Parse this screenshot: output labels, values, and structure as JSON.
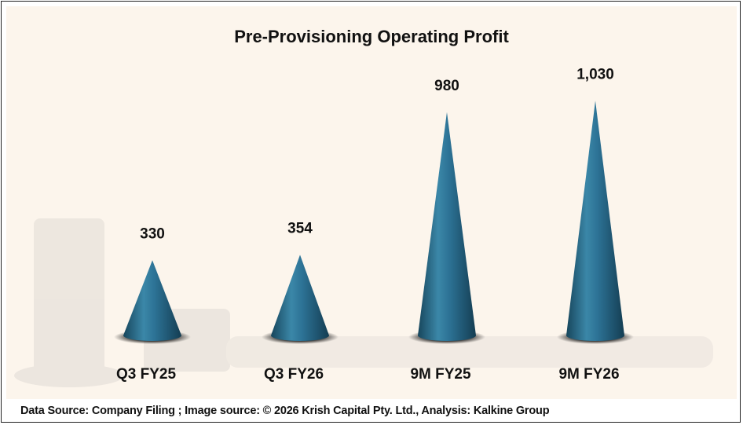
{
  "chart_data": {
    "type": "bar",
    "title": "Pre-Provisioning Operating Profit",
    "categories": [
      "Q3 FY25",
      "Q3 FY26",
      "9M FY25",
      "9M FY26"
    ],
    "values": [
      330,
      354,
      980,
      1030
    ],
    "value_labels": [
      "330",
      "354",
      "980",
      "1,030"
    ],
    "xlabel": "",
    "ylabel": "",
    "grid": false,
    "bar_shape": "cone",
    "bar_color": "#2a6d8c"
  },
  "footer": "Data Source: Company Filing ; Image source: © 2026 Krish Capital Pty. Ltd., Analysis: Kalkine Group"
}
